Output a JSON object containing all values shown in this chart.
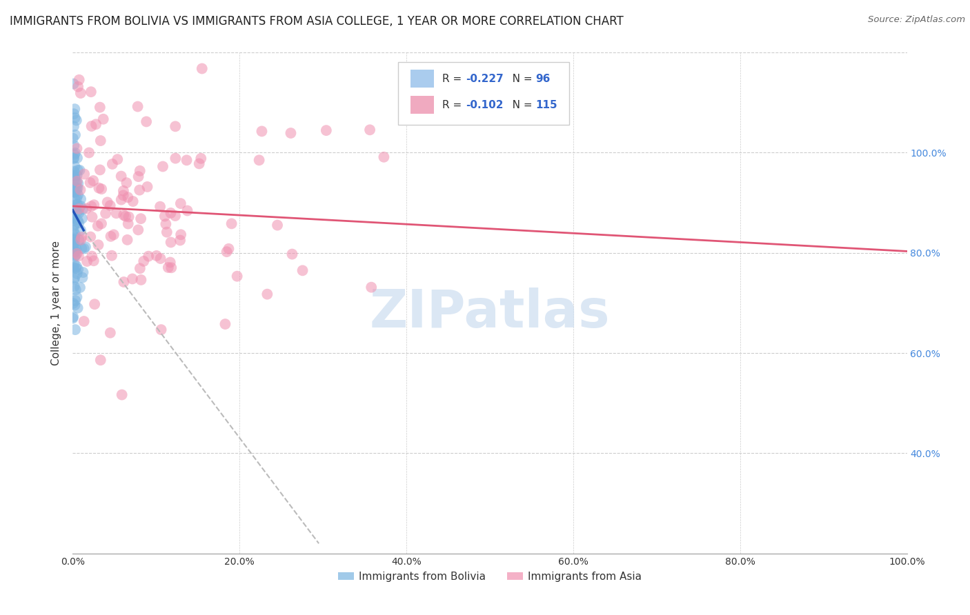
{
  "title": "IMMIGRANTS FROM BOLIVIA VS IMMIGRANTS FROM ASIA COLLEGE, 1 YEAR OR MORE CORRELATION CHART",
  "source": "Source: ZipAtlas.com",
  "ylabel": "College, 1 year or more",
  "xlim": [
    0.0,
    1.0
  ],
  "ylim": [
    0.0,
    1.0
  ],
  "scatter_color_bolivia": "#7ab4e0",
  "scatter_color_asia": "#f090b0",
  "trendline_bolivia_color": "#2255bb",
  "trendline_asia_color": "#e05575",
  "trendline_dashed_color": "#bbbbbb",
  "watermark_color": "#ccddf0",
  "legend_color1": "#aaccee",
  "legend_color2": "#f0aac0",
  "right_axis_color": "#4488dd",
  "grid_color": "#cccccc",
  "title_color": "#222222",
  "source_color": "#666666",
  "label_color": "#333333"
}
